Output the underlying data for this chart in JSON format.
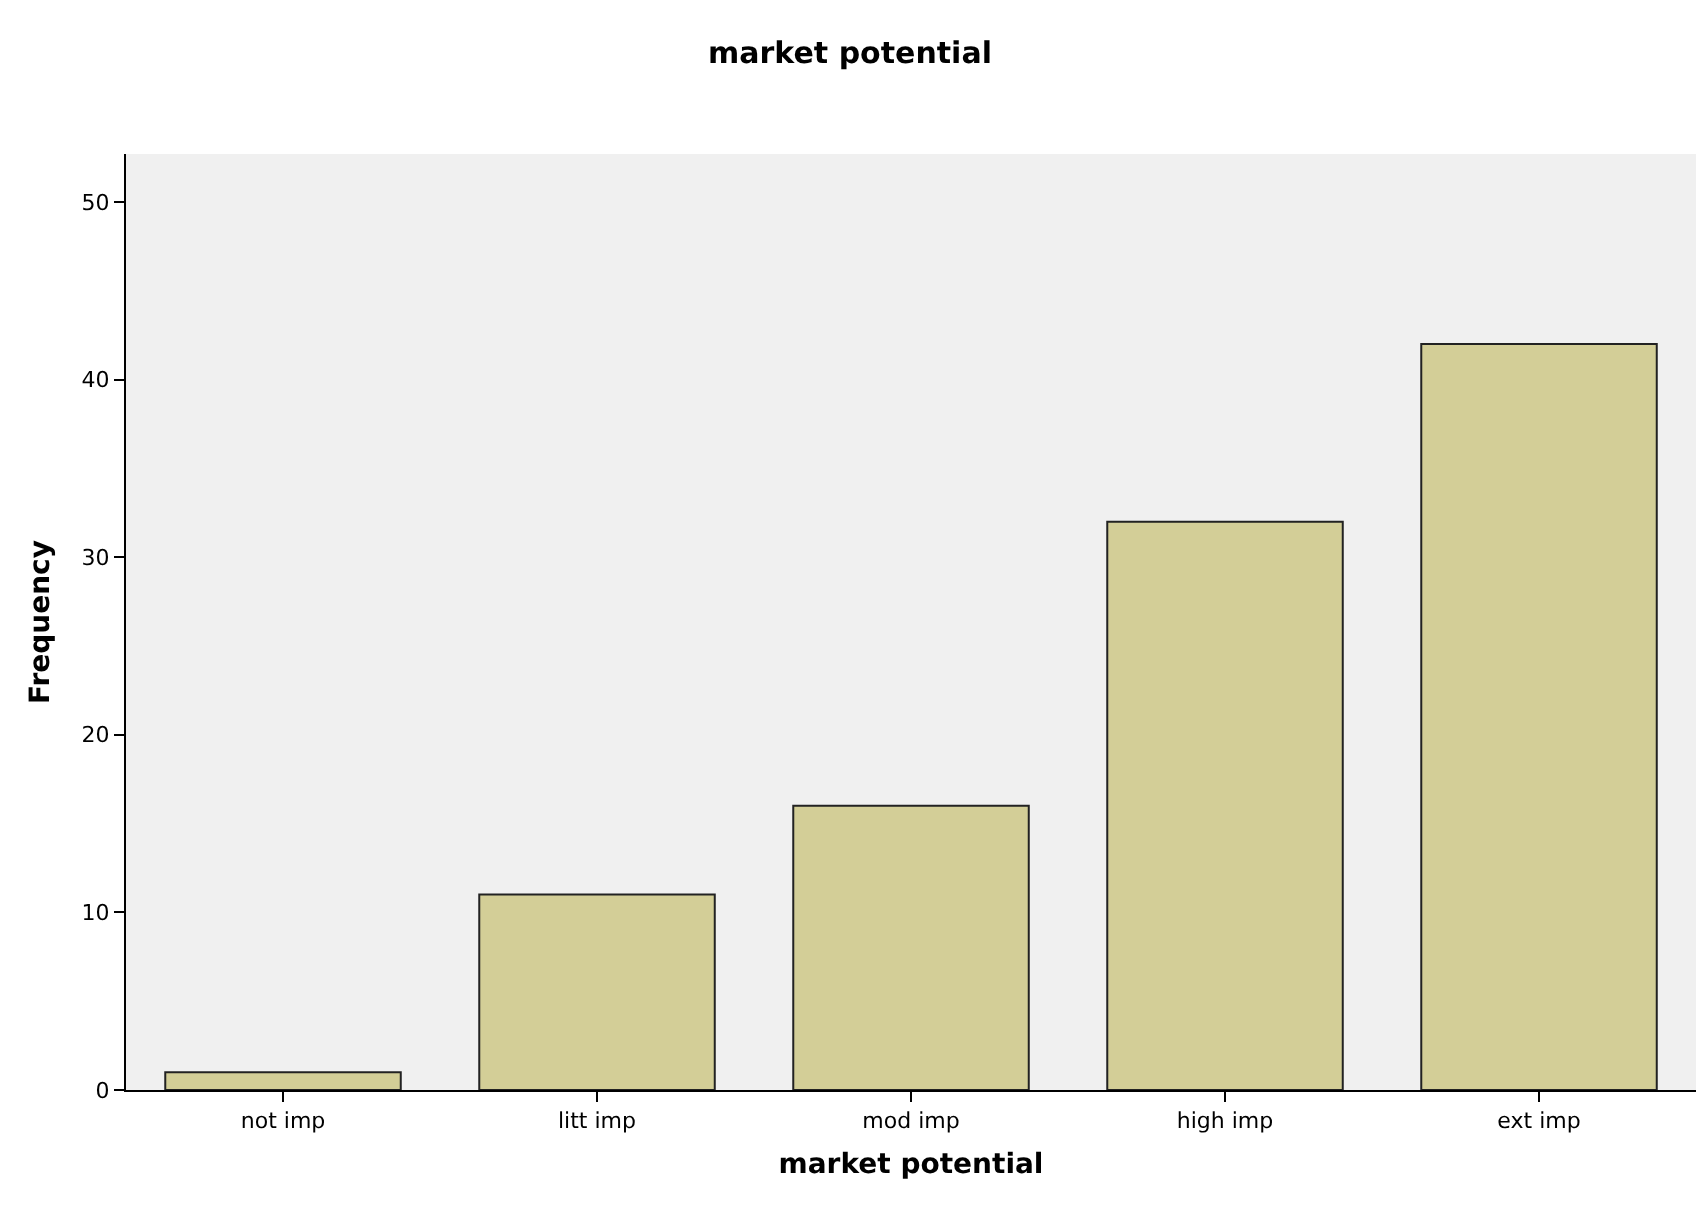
{
  "chart_data": {
    "type": "bar",
    "title": "market potential",
    "xlabel": "market potential",
    "ylabel": "Frequency",
    "categories": [
      "not imp",
      "litt imp",
      "mod imp",
      "high imp",
      "ext imp"
    ],
    "values": [
      1,
      11,
      16,
      32,
      42
    ],
    "color": "#d3ce97",
    "ylim": [
      0,
      52.7
    ],
    "yticks": [
      0,
      10,
      20,
      30,
      40,
      50
    ],
    "grid": false
  }
}
